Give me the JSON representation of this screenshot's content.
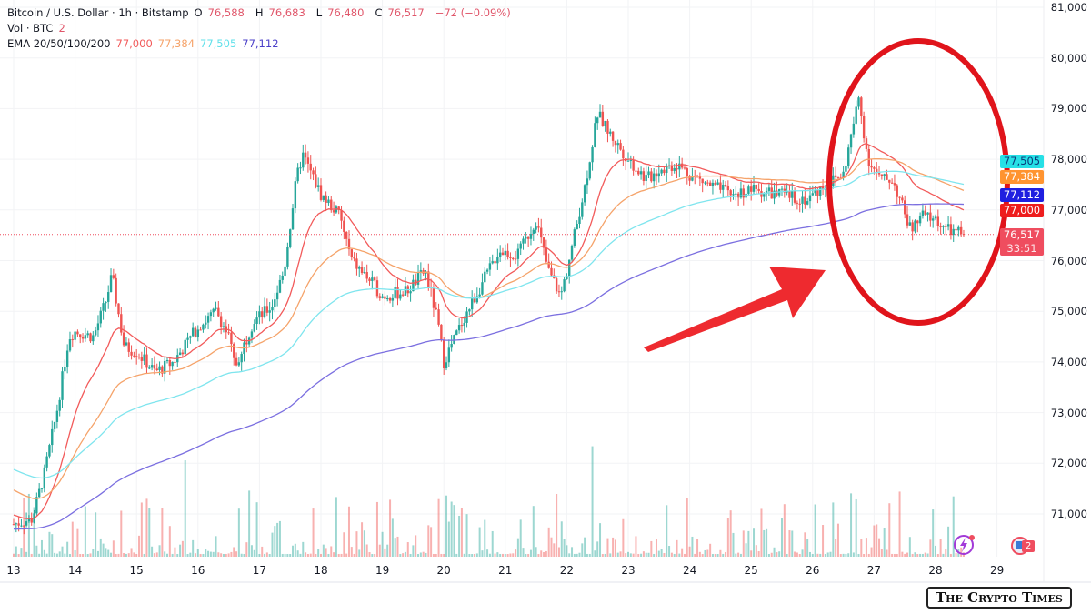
{
  "header": {
    "symbol": "Bitcoin / U.S. Dollar · 1h · Bitstamp",
    "open_label": "O",
    "open": "76,588",
    "high_label": "H",
    "high": "76,683",
    "low_label": "L",
    "low": "76,480",
    "close_label": "C",
    "close": "76,517",
    "change": "−72 (−0.09%)",
    "vol_label": "Vol · BTC",
    "vol": "2",
    "ema_label": "EMA 20/50/100/200",
    "ema_values": [
      "77,000",
      "77,384",
      "77,505",
      "77,112"
    ]
  },
  "price_tags": [
    {
      "text": "77,505",
      "color": "#26e0e6",
      "text_color": "#0a3a7a"
    },
    {
      "text": "77,384",
      "color": "#ff9430",
      "text_color": "#ffffff"
    },
    {
      "text": "77,112",
      "color": "#1f1fe0",
      "text_color": "#ffffff"
    },
    {
      "text": "77,000",
      "color": "#ee1d1d",
      "text_color": "#ffffff"
    }
  ],
  "current_price_tag": {
    "price": "76,517",
    "countdown": "33:51",
    "color": "#ef4d5f"
  },
  "watermark": "The Crypto Times",
  "badge_count": "2",
  "chart_data": {
    "type": "candlestick",
    "title": "Bitcoin / U.S. Dollar · 1h · Bitstamp",
    "x_ticks": [
      "13",
      "14",
      "15",
      "16",
      "17",
      "18",
      "19",
      "20",
      "21",
      "22",
      "23",
      "24",
      "25",
      "26",
      "27",
      "28",
      "29"
    ],
    "y_ticks": [
      "81,000",
      "80,000",
      "79,000",
      "78,000",
      "77,000",
      "76,000",
      "75,000",
      "74,000",
      "73,000",
      "72,000",
      "71,000"
    ],
    "ylim": [
      70700,
      81000
    ],
    "colors": {
      "up": "#26a69a",
      "down": "#ef5350",
      "ema20": "#f25a5a",
      "ema50": "#f5a36a",
      "ema100": "#7fe5ee",
      "ema200": "#7b6fe0"
    },
    "approx_close_path": [
      [
        0,
        70800
      ],
      [
        0.3,
        70900
      ],
      [
        0.5,
        71800
      ],
      [
        0.7,
        73000
      ],
      [
        0.9,
        74500
      ],
      [
        1.0,
        74600
      ],
      [
        1.3,
        74500
      ],
      [
        1.5,
        75200
      ],
      [
        1.6,
        75700
      ],
      [
        1.8,
        74300
      ],
      [
        2.0,
        74200
      ],
      [
        2.3,
        73800
      ],
      [
        2.6,
        74000
      ],
      [
        3.0,
        74700
      ],
      [
        3.3,
        75000
      ],
      [
        3.5,
        74500
      ],
      [
        3.6,
        73900
      ],
      [
        3.9,
        74800
      ],
      [
        4.2,
        75100
      ],
      [
        4.4,
        75800
      ],
      [
        4.6,
        77600
      ],
      [
        4.7,
        78100
      ],
      [
        5.0,
        77300
      ],
      [
        5.3,
        76900
      ],
      [
        5.5,
        76000
      ],
      [
        5.8,
        75600
      ],
      [
        6.0,
        75300
      ],
      [
        6.4,
        75400
      ],
      [
        6.7,
        75800
      ],
      [
        6.9,
        74800
      ],
      [
        7.0,
        74000
      ],
      [
        7.3,
        74800
      ],
      [
        7.6,
        75500
      ],
      [
        7.9,
        76200
      ],
      [
        8.2,
        76100
      ],
      [
        8.5,
        76800
      ],
      [
        8.7,
        75800
      ],
      [
        8.9,
        75300
      ],
      [
        9.0,
        75800
      ],
      [
        9.3,
        77500
      ],
      [
        9.5,
        78900
      ],
      [
        9.7,
        78500
      ],
      [
        10.0,
        78000
      ],
      [
        10.3,
        77600
      ],
      [
        10.5,
        77800
      ],
      [
        10.8,
        77900
      ],
      [
        11.0,
        77700
      ],
      [
        11.3,
        77500
      ],
      [
        11.7,
        77300
      ],
      [
        12.0,
        77400
      ],
      [
        12.5,
        77300
      ],
      [
        12.9,
        77200
      ],
      [
        13.2,
        77500
      ],
      [
        13.5,
        77700
      ],
      [
        13.75,
        79200
      ],
      [
        13.9,
        78000
      ],
      [
        14.1,
        77600
      ],
      [
        14.3,
        77600
      ],
      [
        14.6,
        76600
      ],
      [
        14.8,
        76900
      ],
      [
        15.0,
        76800
      ],
      [
        15.2,
        76600
      ],
      [
        15.45,
        76517
      ]
    ],
    "ema_start": {
      "ema20": 71000,
      "ema50": 71500,
      "ema100": 71900,
      "ema200": 70700
    },
    "ema_last": {
      "ema20": 77000,
      "ema50": 77384,
      "ema100": 77505,
      "ema200": 77112
    },
    "current_price": 76517
  }
}
